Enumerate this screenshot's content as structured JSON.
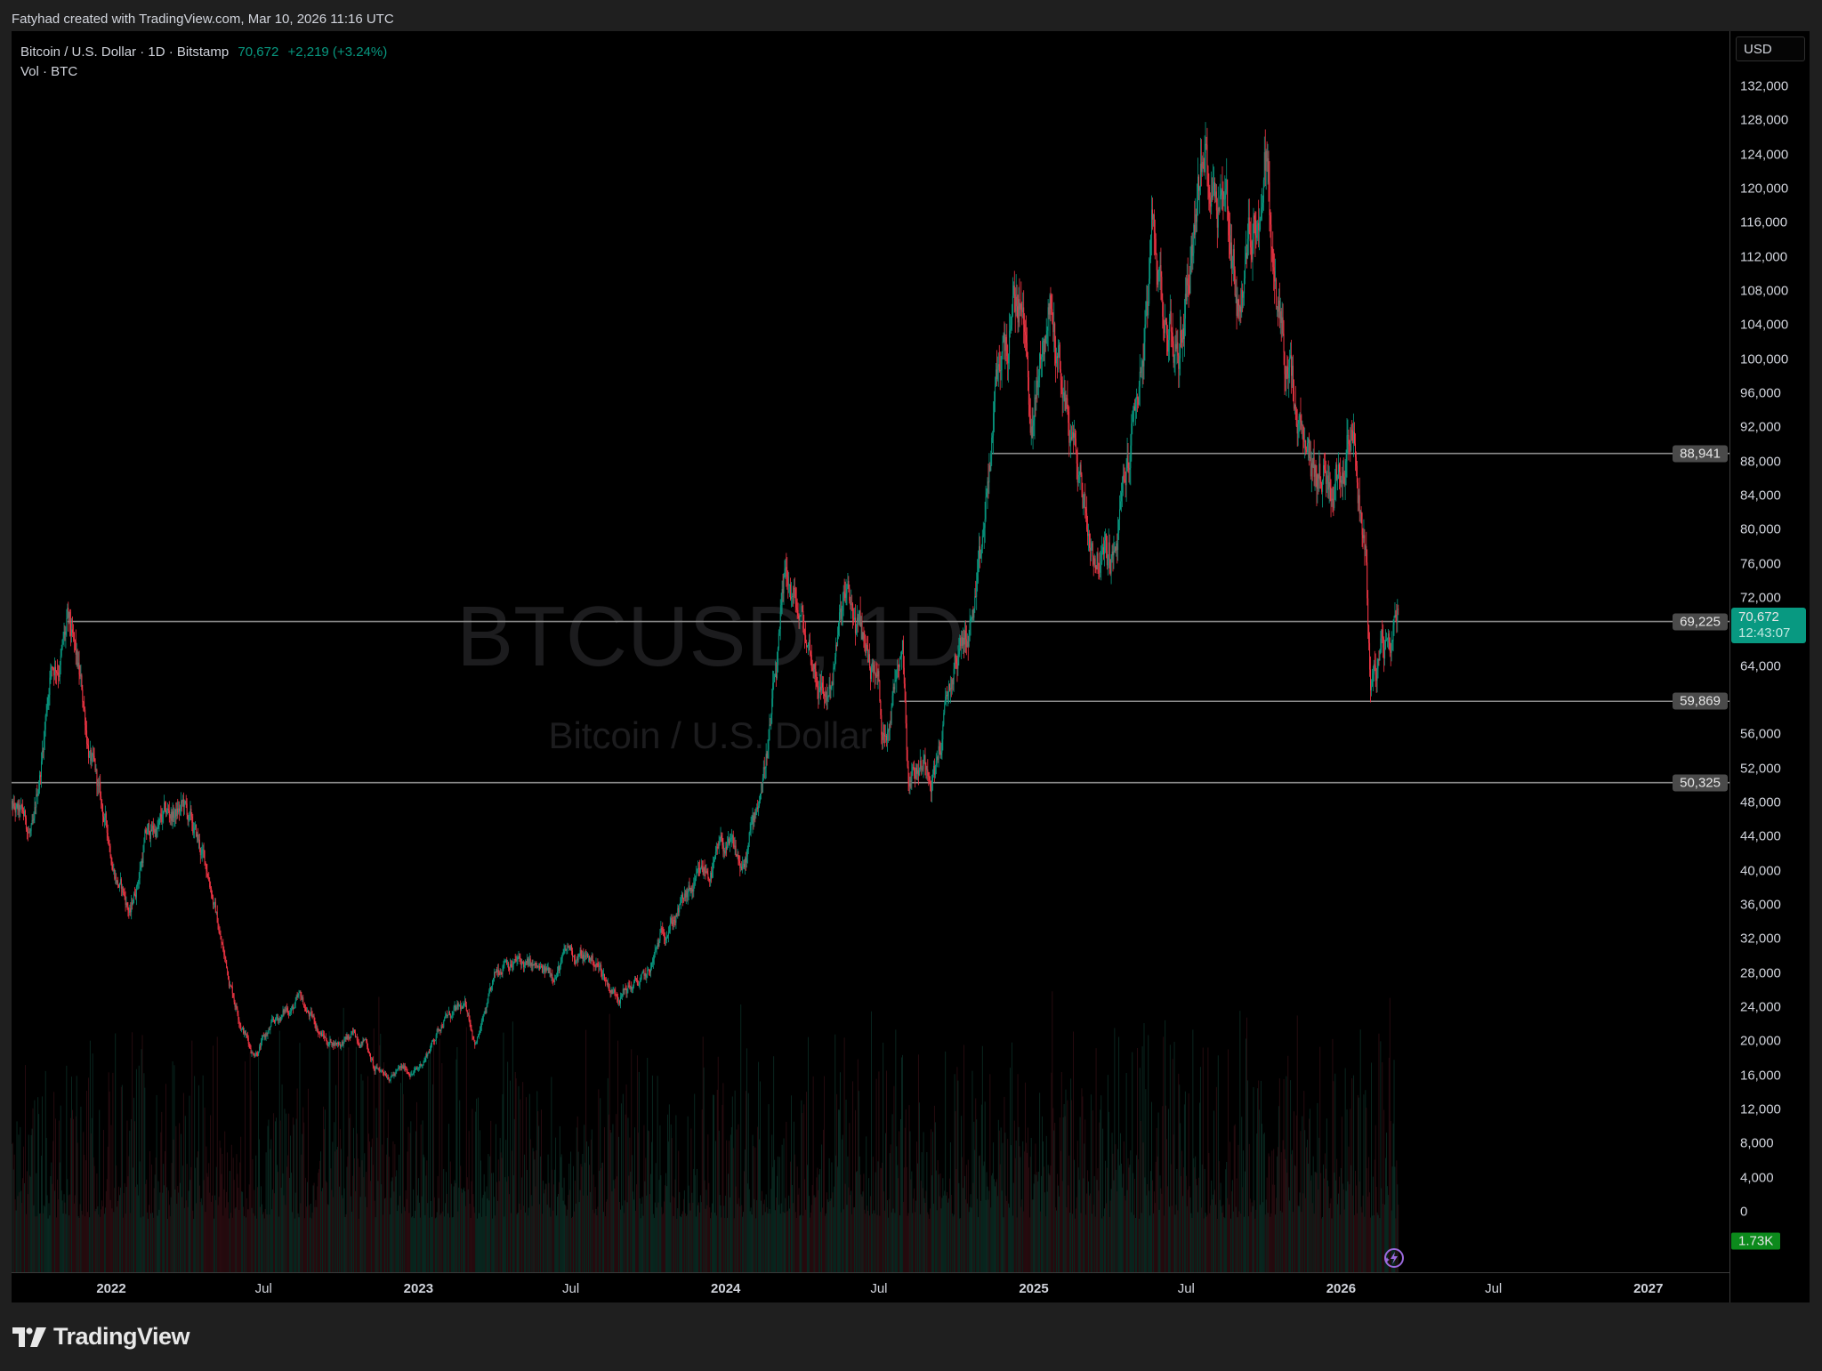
{
  "credit": "Fatyhad created with TradingView.com, Mar 10, 2026 11:16 UTC",
  "legend": {
    "symbol": "Bitcoin / U.S. Dollar · 1D · Bitstamp",
    "last": "70,672",
    "change": "+2,219 (+3.24%)",
    "volume_label": "Vol · BTC"
  },
  "watermark": {
    "ticker": "BTCUSD, 1D",
    "name": "Bitcoin / U.S. Dollar"
  },
  "currency_button": "USD",
  "brand": "TradingView",
  "colors": {
    "up": "#089981",
    "down": "#f23645",
    "background": "#000000",
    "level_line": "#8a8a8a",
    "current_badge": "#089981",
    "volume_badge": "#0c8a1c"
  },
  "chart_data": {
    "type": "candlestick",
    "symbol": "BTCUSD",
    "interval": "1D",
    "exchange": "Bitstamp",
    "y_ticks": [
      "132,000",
      "128,000",
      "124,000",
      "120,000",
      "116,000",
      "112,000",
      "108,000",
      "104,000",
      "100,000",
      "96,000",
      "92,000",
      "88,000",
      "84,000",
      "80,000",
      "76,000",
      "72,000",
      "64,000",
      "56,000",
      "52,000",
      "48,000",
      "44,000",
      "40,000",
      "36,000",
      "32,000",
      "28,000",
      "24,000",
      "20,000",
      "16,000",
      "12,000",
      "8,000",
      "4,000",
      "0"
    ],
    "y_tick_values": [
      132000,
      128000,
      124000,
      120000,
      116000,
      112000,
      108000,
      104000,
      100000,
      96000,
      92000,
      88000,
      84000,
      80000,
      76000,
      72000,
      64000,
      56000,
      52000,
      48000,
      44000,
      40000,
      36000,
      32000,
      28000,
      24000,
      20000,
      16000,
      12000,
      8000,
      4000,
      0
    ],
    "ylim": [
      -4000,
      136000
    ],
    "x_ticks": [
      {
        "label": "2022",
        "date": "2022-01-01",
        "bold": true
      },
      {
        "label": "Jul",
        "date": "2022-07-01",
        "bold": false
      },
      {
        "label": "2023",
        "date": "2023-01-01",
        "bold": true
      },
      {
        "label": "Jul",
        "date": "2023-07-01",
        "bold": false
      },
      {
        "label": "2024",
        "date": "2024-01-01",
        "bold": true
      },
      {
        "label": "Jul",
        "date": "2024-07-01",
        "bold": false
      },
      {
        "label": "2025",
        "date": "2025-01-01",
        "bold": true
      },
      {
        "label": "Jul",
        "date": "2025-07-01",
        "bold": false
      },
      {
        "label": "2026",
        "date": "2026-01-01",
        "bold": true
      },
      {
        "label": "Jul",
        "date": "2026-07-01",
        "bold": false
      },
      {
        "label": "2027",
        "date": "2027-01-01",
        "bold": true
      }
    ],
    "approx_monthly_closes": [
      [
        "2021-09-01",
        47000
      ],
      [
        "2021-10-01",
        43500
      ],
      [
        "2021-10-20",
        64000
      ],
      [
        "2021-11-10",
        68000
      ],
      [
        "2021-12-01",
        57000
      ],
      [
        "2021-12-20",
        46500
      ],
      [
        "2022-01-24",
        35000
      ],
      [
        "2022-02-10",
        44000
      ],
      [
        "2022-03-28",
        47000
      ],
      [
        "2022-04-30",
        38500
      ],
      [
        "2022-05-15",
        30000
      ],
      [
        "2022-06-18",
        19000
      ],
      [
        "2022-07-30",
        23800
      ],
      [
        "2022-08-14",
        24400
      ],
      [
        "2022-09-15",
        20000
      ],
      [
        "2022-10-31",
        20500
      ],
      [
        "2022-11-10",
        16500
      ],
      [
        "2022-12-31",
        16550
      ],
      [
        "2023-01-31",
        23100
      ],
      [
        "2023-02-28",
        23200
      ],
      [
        "2023-03-10",
        20200
      ],
      [
        "2023-04-14",
        30400
      ],
      [
        "2023-05-31",
        27200
      ],
      [
        "2023-06-30",
        30400
      ],
      [
        "2023-07-31",
        29200
      ],
      [
        "2023-08-20",
        26000
      ],
      [
        "2023-09-30",
        27000
      ],
      [
        "2023-10-25",
        34500
      ],
      [
        "2023-11-30",
        37700
      ],
      [
        "2023-12-31",
        42300
      ],
      [
        "2024-01-23",
        39500
      ],
      [
        "2024-02-29",
        61500
      ],
      [
        "2024-03-14",
        72500
      ],
      [
        "2024-04-30",
        60600
      ],
      [
        "2024-05-21",
        71000
      ],
      [
        "2024-06-30",
        62700
      ],
      [
        "2024-07-05",
        54000
      ],
      [
        "2024-07-29",
        69500
      ],
      [
        "2024-08-05",
        53000
      ],
      [
        "2024-09-06",
        53500
      ],
      [
        "2024-09-30",
        64000
      ],
      [
        "2024-10-29",
        72500
      ],
      [
        "2024-11-12",
        89000
      ],
      [
        "2024-11-22",
        99000
      ],
      [
        "2024-12-17",
        107000
      ],
      [
        "2024-12-30",
        92000
      ],
      [
        "2025-01-20",
        106000
      ],
      [
        "2025-02-28",
        84300
      ],
      [
        "2025-03-10",
        79000
      ],
      [
        "2025-04-07",
        76000
      ],
      [
        "2025-05-22",
        111000
      ],
      [
        "2025-06-22",
        100000
      ],
      [
        "2025-07-14",
        122000
      ],
      [
        "2025-08-14",
        123500
      ],
      [
        "2025-09-01",
        108000
      ],
      [
        "2025-10-06",
        125500
      ],
      [
        "2025-10-10",
        111000
      ],
      [
        "2025-11-21",
        84000
      ],
      [
        "2025-12-31",
        87500
      ],
      [
        "2026-01-14",
        97000
      ],
      [
        "2026-01-31",
        78000
      ],
      [
        "2026-02-05",
        62500
      ],
      [
        "2026-02-28",
        66000
      ],
      [
        "2026-03-10",
        70672
      ]
    ],
    "horizontal_levels": [
      {
        "price": 88941,
        "label": "88,941",
        "from": "2024-11-12"
      },
      {
        "price": 69225,
        "label": "69,225",
        "from": "2021-11-10"
      },
      {
        "price": 59869,
        "label": "59,869",
        "from": "2024-07-25"
      },
      {
        "price": 50325,
        "label": "50,325",
        "from": "2021-09-01"
      }
    ],
    "current_price": {
      "label": "70,672",
      "value": 70672,
      "countdown": "12:43:07"
    },
    "volume_last": "1.73K"
  }
}
